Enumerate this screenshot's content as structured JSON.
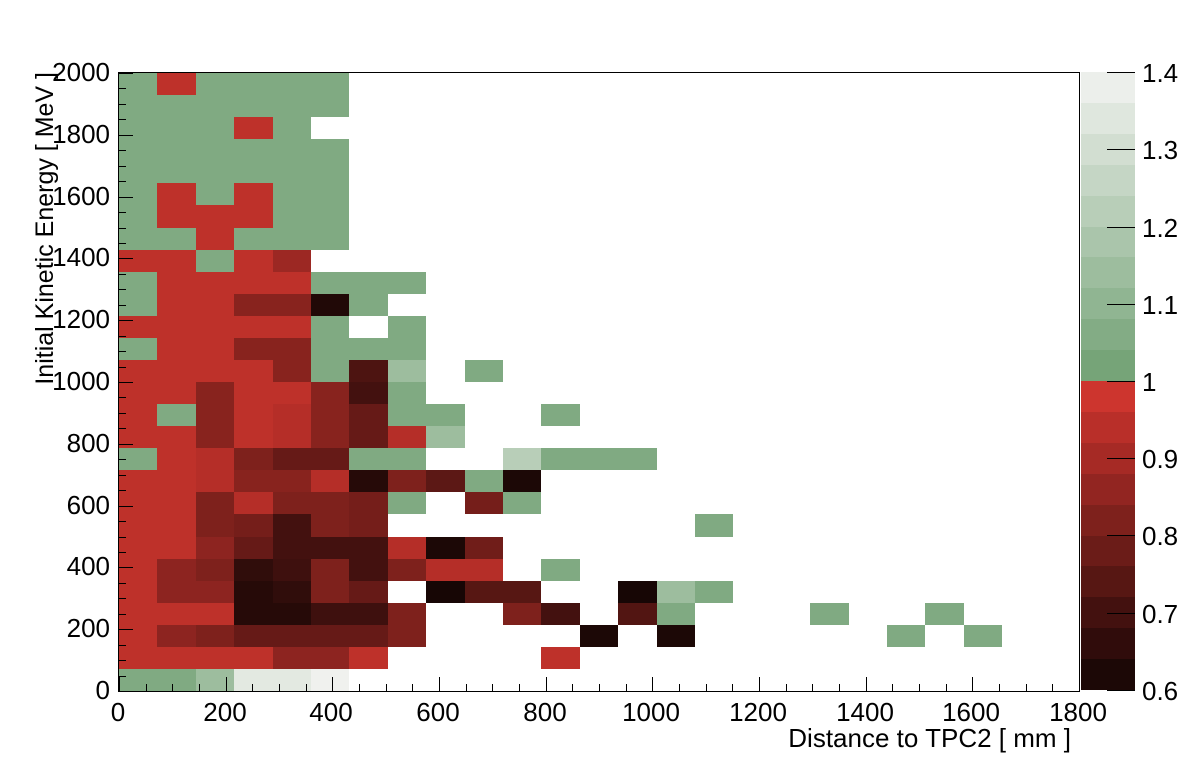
{
  "figure": {
    "background": "#ffffff",
    "x_axis": {
      "title": "Distance to TPC2  [ mm ]",
      "min": 0,
      "max": 1800,
      "major_tick_step": 200,
      "minor_tick_step": 50,
      "tick_labels": [
        "0",
        "200",
        "400",
        "600",
        "800",
        "1000",
        "1200",
        "1400",
        "1600",
        "1800"
      ]
    },
    "y_axis": {
      "title": "Initial Kinetic Energy  [ MeV ]",
      "min": 0,
      "max": 2000,
      "major_tick_step": 200,
      "minor_tick_step": 50,
      "tick_labels": [
        "0",
        "200",
        "400",
        "600",
        "800",
        "1000",
        "1200",
        "1400",
        "1600",
        "1800",
        "2000"
      ]
    },
    "z_axis": {
      "min": 0.6,
      "max": 1.4,
      "tick_values": [
        0.6,
        0.7,
        0.8,
        0.9,
        1,
        1.1,
        1.2,
        1.3,
        1.4
      ],
      "tick_labels": [
        "0.6",
        "0.7",
        "0.8",
        "0.9",
        "1",
        "1.1",
        "1.2",
        "1.3",
        "1.4"
      ],
      "n_color_bands": 20
    }
  },
  "chart_data": {
    "type": "heatmap",
    "title": "",
    "xlabel": "Distance to TPC2  [ mm ]",
    "ylabel": "Initial Kinetic Energy  [ MeV ]",
    "x_range": [
      0,
      1800
    ],
    "y_range": [
      0,
      2000
    ],
    "z_range": [
      0.6,
      1.4
    ],
    "x_bins": 25,
    "y_bins": 28,
    "x_bin_width_mm": 72,
    "y_bin_width_mev": 71.43,
    "grid": false,
    "legend_position": "right-colorbar",
    "palette": {
      "red_low": "#120504",
      "red_high": "#d73730",
      "green_low": "#6fa072",
      "green_high": "#f3f3f1",
      "empty": "#ffffff"
    },
    "cell_format": "[x_bin_index_from_left, y_bin_index_from_bottom, ratio_value]",
    "cells": [
      [
        0,
        0,
        1.05
      ],
      [
        1,
        0,
        1.05
      ],
      [
        2,
        0,
        1.14
      ],
      [
        3,
        0,
        1.35
      ],
      [
        4,
        0,
        1.35
      ],
      [
        5,
        0,
        1.39
      ],
      [
        0,
        1,
        0.95
      ],
      [
        1,
        1,
        0.95
      ],
      [
        2,
        1,
        0.95
      ],
      [
        3,
        1,
        0.95
      ],
      [
        4,
        1,
        0.85
      ],
      [
        5,
        1,
        0.85
      ],
      [
        6,
        1,
        0.95
      ],
      [
        11,
        1,
        0.95
      ],
      [
        0,
        2,
        0.95
      ],
      [
        1,
        2,
        0.85
      ],
      [
        2,
        2,
        0.82
      ],
      [
        3,
        2,
        0.77
      ],
      [
        4,
        2,
        0.77
      ],
      [
        5,
        2,
        0.77
      ],
      [
        6,
        2,
        0.77
      ],
      [
        7,
        2,
        0.82
      ],
      [
        12,
        2,
        0.62
      ],
      [
        14,
        2,
        0.62
      ],
      [
        20,
        2,
        1.05
      ],
      [
        22,
        2,
        1.05
      ],
      [
        0,
        3,
        0.95
      ],
      [
        1,
        3,
        0.95
      ],
      [
        2,
        3,
        0.95
      ],
      [
        3,
        3,
        0.64
      ],
      [
        4,
        3,
        0.64
      ],
      [
        5,
        3,
        0.69
      ],
      [
        6,
        3,
        0.69
      ],
      [
        7,
        3,
        0.82
      ],
      [
        10,
        3,
        0.82
      ],
      [
        11,
        3,
        0.7
      ],
      [
        13,
        3,
        0.73
      ],
      [
        14,
        3,
        1.05
      ],
      [
        18,
        3,
        1.05
      ],
      [
        21,
        3,
        1.05
      ],
      [
        0,
        4,
        0.95
      ],
      [
        1,
        4,
        0.85
      ],
      [
        2,
        4,
        0.85
      ],
      [
        3,
        4,
        0.64
      ],
      [
        4,
        4,
        0.66
      ],
      [
        5,
        4,
        0.82
      ],
      [
        6,
        4,
        0.77
      ],
      [
        8,
        4,
        0.61
      ],
      [
        9,
        4,
        0.74
      ],
      [
        10,
        4,
        0.74
      ],
      [
        13,
        4,
        0.61
      ],
      [
        14,
        4,
        1.14
      ],
      [
        15,
        4,
        1.05
      ],
      [
        0,
        5,
        0.95
      ],
      [
        1,
        5,
        0.85
      ],
      [
        2,
        5,
        0.82
      ],
      [
        3,
        5,
        0.66
      ],
      [
        4,
        5,
        0.69
      ],
      [
        5,
        5,
        0.82
      ],
      [
        6,
        5,
        0.7
      ],
      [
        7,
        5,
        0.82
      ],
      [
        8,
        5,
        0.93
      ],
      [
        9,
        5,
        0.93
      ],
      [
        11,
        5,
        1.05
      ],
      [
        0,
        6,
        0.95
      ],
      [
        1,
        6,
        0.95
      ],
      [
        2,
        6,
        0.85
      ],
      [
        3,
        6,
        0.77
      ],
      [
        4,
        6,
        0.7
      ],
      [
        5,
        6,
        0.7
      ],
      [
        6,
        6,
        0.7
      ],
      [
        7,
        6,
        0.93
      ],
      [
        8,
        6,
        0.62
      ],
      [
        9,
        6,
        0.79
      ],
      [
        0,
        7,
        0.95
      ],
      [
        1,
        7,
        0.95
      ],
      [
        2,
        7,
        0.82
      ],
      [
        3,
        7,
        0.8
      ],
      [
        4,
        7,
        0.7
      ],
      [
        5,
        7,
        0.82
      ],
      [
        6,
        7,
        0.8
      ],
      [
        15,
        7,
        1.05
      ],
      [
        0,
        8,
        0.95
      ],
      [
        1,
        8,
        0.95
      ],
      [
        2,
        8,
        0.82
      ],
      [
        3,
        8,
        0.93
      ],
      [
        4,
        8,
        0.82
      ],
      [
        5,
        8,
        0.82
      ],
      [
        6,
        8,
        0.8
      ],
      [
        7,
        8,
        1.05
      ],
      [
        9,
        8,
        0.8
      ],
      [
        10,
        8,
        1.05
      ],
      [
        0,
        9,
        0.95
      ],
      [
        1,
        9,
        0.95
      ],
      [
        2,
        9,
        0.93
      ],
      [
        3,
        9,
        0.84
      ],
      [
        4,
        9,
        0.84
      ],
      [
        5,
        9,
        0.93
      ],
      [
        6,
        9,
        0.64
      ],
      [
        7,
        9,
        0.82
      ],
      [
        8,
        9,
        0.75
      ],
      [
        9,
        9,
        1.05
      ],
      [
        10,
        9,
        0.62
      ],
      [
        0,
        10,
        1.05
      ],
      [
        1,
        10,
        0.95
      ],
      [
        2,
        10,
        0.93
      ],
      [
        3,
        10,
        0.82
      ],
      [
        4,
        10,
        0.77
      ],
      [
        5,
        10,
        0.77
      ],
      [
        6,
        10,
        1.05
      ],
      [
        7,
        10,
        1.05
      ],
      [
        10,
        10,
        1.22
      ],
      [
        11,
        10,
        1.05
      ],
      [
        12,
        10,
        1.05
      ],
      [
        13,
        10,
        1.05
      ],
      [
        0,
        11,
        0.95
      ],
      [
        1,
        11,
        0.95
      ],
      [
        2,
        11,
        0.84
      ],
      [
        3,
        11,
        0.95
      ],
      [
        4,
        11,
        0.93
      ],
      [
        5,
        11,
        0.84
      ],
      [
        6,
        11,
        0.77
      ],
      [
        7,
        11,
        0.93
      ],
      [
        8,
        11,
        1.14
      ],
      [
        0,
        12,
        0.95
      ],
      [
        1,
        12,
        1.05
      ],
      [
        2,
        12,
        0.84
      ],
      [
        3,
        12,
        0.95
      ],
      [
        4,
        12,
        0.93
      ],
      [
        5,
        12,
        0.84
      ],
      [
        6,
        12,
        0.77
      ],
      [
        7,
        12,
        1.05
      ],
      [
        8,
        12,
        1.05
      ],
      [
        11,
        12,
        1.05
      ],
      [
        0,
        13,
        0.95
      ],
      [
        1,
        13,
        0.95
      ],
      [
        2,
        13,
        0.84
      ],
      [
        3,
        13,
        0.95
      ],
      [
        4,
        13,
        0.95
      ],
      [
        5,
        13,
        0.84
      ],
      [
        6,
        13,
        0.7
      ],
      [
        7,
        13,
        1.05
      ],
      [
        0,
        14,
        0.95
      ],
      [
        1,
        14,
        0.95
      ],
      [
        2,
        14,
        0.95
      ],
      [
        3,
        14,
        0.95
      ],
      [
        4,
        14,
        0.84
      ],
      [
        5,
        14,
        1.05
      ],
      [
        6,
        14,
        0.72
      ],
      [
        7,
        14,
        1.14
      ],
      [
        9,
        14,
        1.05
      ],
      [
        0,
        15,
        1.05
      ],
      [
        1,
        15,
        0.95
      ],
      [
        2,
        15,
        0.95
      ],
      [
        3,
        15,
        0.84
      ],
      [
        4,
        15,
        0.84
      ],
      [
        5,
        15,
        1.05
      ],
      [
        6,
        15,
        1.05
      ],
      [
        7,
        15,
        1.05
      ],
      [
        0,
        16,
        0.95
      ],
      [
        1,
        16,
        0.95
      ],
      [
        2,
        16,
        0.95
      ],
      [
        3,
        16,
        0.95
      ],
      [
        4,
        16,
        0.95
      ],
      [
        5,
        16,
        1.05
      ],
      [
        7,
        16,
        1.05
      ],
      [
        0,
        17,
        1.05
      ],
      [
        1,
        17,
        0.95
      ],
      [
        2,
        17,
        0.95
      ],
      [
        3,
        17,
        0.84
      ],
      [
        4,
        17,
        0.84
      ],
      [
        5,
        17,
        0.63
      ],
      [
        6,
        17,
        1.05
      ],
      [
        0,
        18,
        1.05
      ],
      [
        1,
        18,
        0.95
      ],
      [
        2,
        18,
        0.95
      ],
      [
        3,
        18,
        0.95
      ],
      [
        4,
        18,
        0.95
      ],
      [
        5,
        18,
        1.05
      ],
      [
        6,
        18,
        1.05
      ],
      [
        7,
        18,
        1.05
      ],
      [
        0,
        19,
        0.95
      ],
      [
        1,
        19,
        0.95
      ],
      [
        2,
        19,
        1.05
      ],
      [
        3,
        19,
        0.95
      ],
      [
        4,
        19,
        0.88
      ],
      [
        0,
        20,
        1.05
      ],
      [
        1,
        20,
        1.05
      ],
      [
        2,
        20,
        0.95
      ],
      [
        3,
        20,
        1.05
      ],
      [
        4,
        20,
        1.05
      ],
      [
        5,
        20,
        1.05
      ],
      [
        0,
        21,
        1.05
      ],
      [
        1,
        21,
        0.95
      ],
      [
        2,
        21,
        0.95
      ],
      [
        3,
        21,
        0.95
      ],
      [
        4,
        21,
        1.05
      ],
      [
        5,
        21,
        1.05
      ],
      [
        0,
        22,
        1.05
      ],
      [
        1,
        22,
        0.95
      ],
      [
        2,
        22,
        1.05
      ],
      [
        3,
        22,
        0.95
      ],
      [
        4,
        22,
        1.05
      ],
      [
        5,
        22,
        1.05
      ],
      [
        0,
        23,
        1.05
      ],
      [
        1,
        23,
        1.05
      ],
      [
        2,
        23,
        1.05
      ],
      [
        3,
        23,
        1.05
      ],
      [
        4,
        23,
        1.05
      ],
      [
        5,
        23,
        1.05
      ],
      [
        0,
        24,
        1.05
      ],
      [
        1,
        24,
        1.05
      ],
      [
        2,
        24,
        1.05
      ],
      [
        3,
        24,
        1.05
      ],
      [
        4,
        24,
        1.05
      ],
      [
        5,
        24,
        1.05
      ],
      [
        0,
        25,
        1.05
      ],
      [
        1,
        25,
        1.05
      ],
      [
        2,
        25,
        1.05
      ],
      [
        3,
        25,
        0.95
      ],
      [
        4,
        25,
        1.05
      ],
      [
        0,
        26,
        1.05
      ],
      [
        1,
        26,
        1.05
      ],
      [
        2,
        26,
        1.05
      ],
      [
        3,
        26,
        1.05
      ],
      [
        4,
        26,
        1.05
      ],
      [
        5,
        26,
        1.05
      ],
      [
        0,
        27,
        1.05
      ],
      [
        1,
        27,
        0.95
      ],
      [
        2,
        27,
        1.05
      ],
      [
        3,
        27,
        1.05
      ],
      [
        4,
        27,
        1.05
      ],
      [
        5,
        27,
        1.05
      ]
    ]
  }
}
